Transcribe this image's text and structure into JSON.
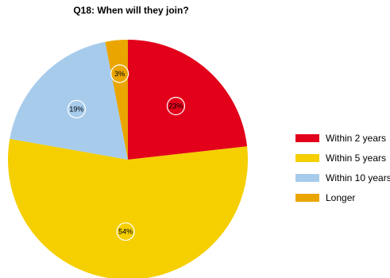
{
  "chart_data": {
    "type": "pie",
    "title": "Q18: When will they join?",
    "slices": [
      {
        "label": "Within 2 years",
        "value": 23,
        "display": "23%",
        "color": "#e2001a"
      },
      {
        "label": "Within 5 years",
        "value": 54,
        "display": "54%",
        "color": "#f5cf00"
      },
      {
        "label": "Within 10 years",
        "value": 19,
        "display": "19%",
        "color": "#a7cbeb"
      },
      {
        "label": "Longer",
        "value": 3,
        "display": "3%",
        "color": "#eaa500"
      }
    ],
    "legend_position": "right"
  }
}
